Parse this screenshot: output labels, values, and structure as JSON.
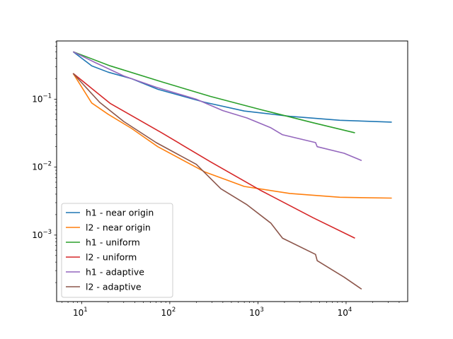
{
  "chart_data": {
    "type": "line",
    "xscale": "log",
    "yscale": "log",
    "xlim": [
      5.2,
      50000
    ],
    "ylim": [
      0.000105,
      0.72
    ],
    "xticks": [
      {
        "value": 10,
        "base": "10",
        "exp": "1"
      },
      {
        "value": 100,
        "base": "10",
        "exp": "2"
      },
      {
        "value": 1000,
        "base": "10",
        "exp": "3"
      },
      {
        "value": 10000,
        "base": "10",
        "exp": "4"
      }
    ],
    "yticks": [
      {
        "value": 0.001,
        "base": "10",
        "exp": "−3"
      },
      {
        "value": 0.01,
        "base": "10",
        "exp": "−2"
      },
      {
        "value": 0.1,
        "base": "10",
        "exp": "−1"
      }
    ],
    "grid": false,
    "legend_position": "lower left",
    "series": [
      {
        "name": "h1 - near origin",
        "color": "#1f77b4",
        "x": [
          8,
          13,
          20,
          37,
          73,
          250,
          700,
          2300,
          8500,
          33000
        ],
        "y": [
          0.5,
          0.31,
          0.25,
          0.2,
          0.14,
          0.09,
          0.067,
          0.056,
          0.049,
          0.046
        ]
      },
      {
        "name": "l2 - near origin",
        "color": "#ff7f0e",
        "x": [
          8,
          13,
          20,
          37,
          73,
          250,
          700,
          2300,
          8500,
          33000
        ],
        "y": [
          0.24,
          0.088,
          0.06,
          0.037,
          0.02,
          0.0085,
          0.0052,
          0.0041,
          0.0036,
          0.0035
        ],
        "note": ""
      },
      {
        "name": "h1 - uniform",
        "color": "#2ca02c",
        "x": [
          8,
          21,
          81,
          289,
          1089,
          4225,
          12600
        ],
        "y": [
          0.5,
          0.31,
          0.18,
          0.11,
          0.07,
          0.045,
          0.032
        ]
      },
      {
        "name": "l2 - uniform",
        "color": "#d62728",
        "x": [
          8,
          21,
          81,
          289,
          1089,
          4225,
          12600
        ],
        "y": [
          0.24,
          0.087,
          0.032,
          0.012,
          0.0045,
          0.0018,
          0.0009
        ]
      },
      {
        "name": "h1 - adaptive",
        "color": "#9467bd",
        "x": [
          8,
          14,
          30,
          70,
          200,
          400,
          750,
          1400,
          1900,
          4500,
          4700,
          9500,
          15000
        ],
        "y": [
          0.5,
          0.35,
          0.22,
          0.15,
          0.1,
          0.068,
          0.053,
          0.038,
          0.03,
          0.023,
          0.02,
          0.016,
          0.0125
        ]
      },
      {
        "name": "l2 - adaptive",
        "color": "#8c564b",
        "x": [
          8,
          16,
          30,
          70,
          200,
          380,
          750,
          1400,
          1900,
          4500,
          4700,
          9500,
          15000
        ],
        "y": [
          0.24,
          0.09,
          0.047,
          0.023,
          0.011,
          0.0048,
          0.0028,
          0.0015,
          0.0009,
          0.00052,
          0.00042,
          0.00024,
          0.00016
        ]
      }
    ]
  }
}
